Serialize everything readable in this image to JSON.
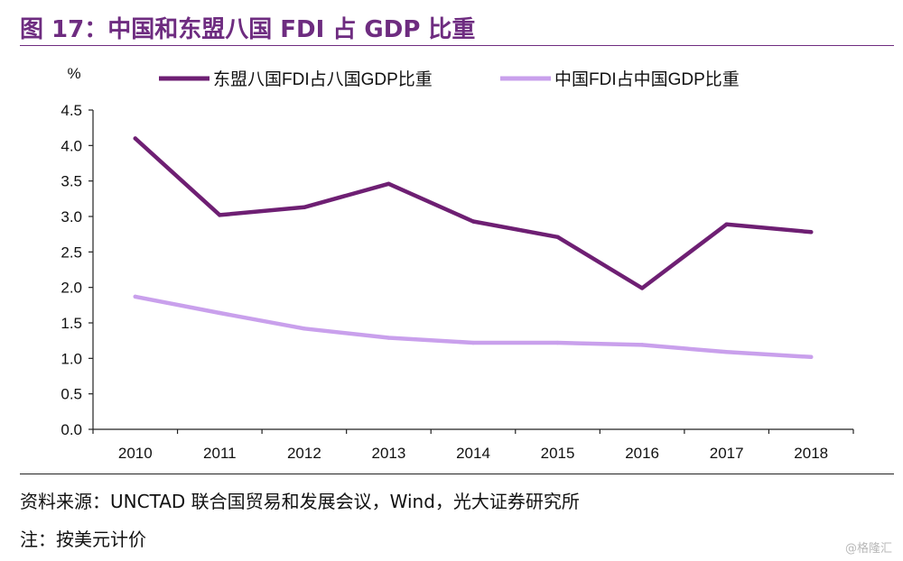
{
  "header": {
    "title": "图 17：中国和东盟八国 FDI 占 GDP 比重"
  },
  "footer": {
    "source": "资料来源：UNCTAD 联合国贸易和发展会议，Wind，光大证券研究所",
    "note": "注：按美元计价",
    "watermark": "@格隆汇"
  },
  "colors": {
    "asean": "#6E1F73",
    "china": "#C9A0EC",
    "axis": "#222222",
    "title": "#6E2C80"
  },
  "chart_data": {
    "type": "line",
    "title": "图 17：中国和东盟八国 FDI 占 GDP 比重",
    "ylabel": "%",
    "xlabel": "",
    "ylim": [
      0,
      4.5
    ],
    "yticks": [
      "0.0",
      "0.5",
      "1.0",
      "1.5",
      "2.0",
      "2.5",
      "3.0",
      "3.5",
      "4.0",
      "4.5"
    ],
    "grid": false,
    "legend_position": "top",
    "categories": [
      "2010",
      "2011",
      "2012",
      "2013",
      "2014",
      "2015",
      "2016",
      "2017",
      "2018"
    ],
    "series": [
      {
        "name": "东盟八国FDI占八国GDP比重",
        "color": "#6E1F73",
        "values": [
          4.1,
          3.02,
          3.13,
          3.46,
          2.93,
          2.71,
          1.99,
          2.89,
          2.78
        ]
      },
      {
        "name": "中国FDI占中国GDP比重",
        "color": "#C9A0EC",
        "values": [
          1.87,
          1.64,
          1.42,
          1.29,
          1.22,
          1.22,
          1.19,
          1.09,
          1.02
        ]
      }
    ]
  }
}
